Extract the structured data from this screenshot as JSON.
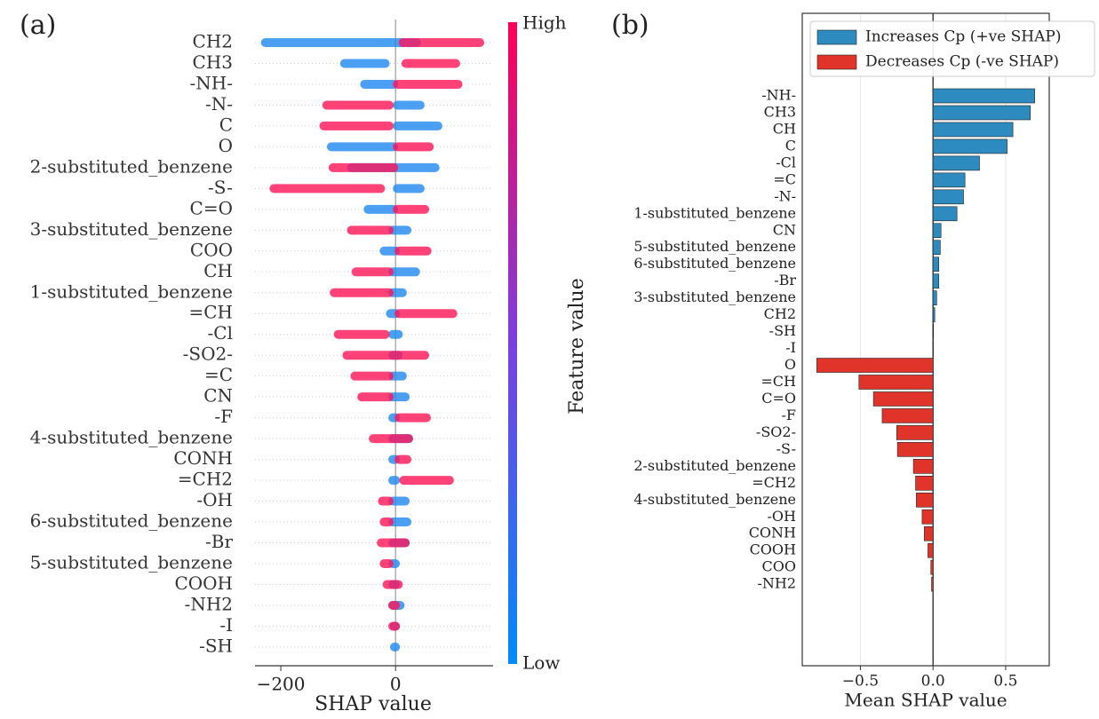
{
  "chart_data": [
    {
      "type": "beeswarm",
      "title": "(a)",
      "xlabel": "SHAP value",
      "categories": [
        "CH2",
        "CH3",
        "-NH-",
        "-N-",
        "C",
        "O",
        "2-substituted_benzene",
        "-S-",
        "C=O",
        "3-substituted_benzene",
        "COO",
        "CH",
        "1-substituted_benzene",
        "=CH",
        "-Cl",
        "-SO2-",
        "=C",
        "CN",
        "-F",
        "4-substituted_benzene",
        "CONH",
        "=CH2",
        "-OH",
        "6-substituted_benzene",
        "-Br",
        "5-substituted_benzene",
        "COOH",
        "-NH2",
        "-I",
        "-SH"
      ],
      "low_ranges": [
        [
          -230,
          40
        ],
        [
          -92,
          -15
        ],
        [
          -57,
          0
        ],
        [
          0,
          46
        ],
        [
          0,
          77
        ],
        [
          -115,
          0
        ],
        [
          -80,
          72
        ],
        [
          0,
          46
        ],
        [
          -51,
          0
        ],
        [
          -8,
          23
        ],
        [
          -23,
          3
        ],
        [
          -8,
          38
        ],
        [
          -8,
          15
        ],
        [
          -12,
          3
        ],
        [
          -8,
          8
        ],
        [
          -8,
          8
        ],
        [
          -8,
          15
        ],
        [
          -8,
          20
        ],
        [
          -8,
          3
        ],
        [
          -8,
          26
        ],
        [
          -8,
          3
        ],
        [
          -8,
          3
        ],
        [
          -8,
          20
        ],
        [
          -8,
          23
        ],
        [
          -8,
          20
        ],
        [
          -8,
          3
        ],
        [
          -8,
          3
        ],
        [
          -8,
          11
        ],
        [
          -5,
          3
        ],
        [
          -5,
          3
        ]
      ],
      "high_ranges": [
        [
          10,
          150
        ],
        [
          15,
          108
        ],
        [
          0,
          112
        ],
        [
          -123,
          -8
        ],
        [
          -128,
          -8
        ],
        [
          0,
          62
        ],
        [
          -112,
          0
        ],
        [
          -215,
          -23
        ],
        [
          0,
          54
        ],
        [
          -80,
          -8
        ],
        [
          3,
          58
        ],
        [
          -72,
          -8
        ],
        [
          -110,
          -8
        ],
        [
          3,
          103
        ],
        [
          -103,
          -15
        ],
        [
          -88,
          54
        ],
        [
          -74,
          -8
        ],
        [
          -62,
          -8
        ],
        [
          3,
          57
        ],
        [
          -42,
          26
        ],
        [
          3,
          23
        ],
        [
          11,
          97
        ],
        [
          -26,
          -8
        ],
        [
          -23,
          -8
        ],
        [
          -28,
          20
        ],
        [
          -23,
          -8
        ],
        [
          -18,
          8
        ],
        [
          -8,
          3
        ],
        [
          -8,
          3
        ],
        null
      ],
      "low_color": "#1e88f0",
      "high_color": "#ff1458",
      "colorbar_label": "Feature value",
      "colorbar_high": "High",
      "colorbar_low": "Low",
      "xlim": [
        -245,
        170
      ],
      "xticks": [
        {
          "value": -200,
          "label": "−200"
        },
        0
      ]
    },
    {
      "type": "bar",
      "title": "(b)",
      "orientation": "horizontal",
      "xlabel": "Mean SHAP value",
      "categories": [
        "-NH-",
        "CH3",
        "CH",
        "C",
        "-Cl",
        "=C",
        "-N-",
        "1-substituted_benzene",
        "CN",
        "5-substituted_benzene",
        "6-substituted_benzene",
        "-Br",
        "3-substituted_benzene",
        "CH2",
        "-SH",
        "-I",
        "O",
        "=CH",
        "C=O",
        "-F",
        "-SO2-",
        "-S-",
        "2-substituted_benzene",
        "=CH2",
        "4-substituted_benzene",
        "-OH",
        "CONH",
        "COOH",
        "COO",
        "-NH2"
      ],
      "values": [
        0.7,
        0.67,
        0.55,
        0.51,
        0.32,
        0.22,
        0.21,
        0.165,
        0.055,
        0.05,
        0.04,
        0.04,
        0.025,
        0.012,
        0.003,
        0.002,
        -0.8,
        -0.51,
        -0.41,
        -0.35,
        -0.25,
        -0.245,
        -0.135,
        -0.12,
        -0.115,
        -0.075,
        -0.06,
        -0.035,
        -0.015,
        -0.01
      ],
      "legend": [
        {
          "name": "Increases Cp (+ve SHAP)",
          "color": "#2e8bc0"
        },
        {
          "name": "Decreases Cp (-ve SHAP)",
          "color": "#e0342b"
        }
      ],
      "legend_position": "upper right",
      "grid": true,
      "xlim": [
        -0.9,
        0.8
      ],
      "xticks": [
        {
          "value": -0.5,
          "label": "−0.5"
        },
        {
          "value": 0,
          "label": "0.0"
        },
        0.5
      ]
    }
  ]
}
